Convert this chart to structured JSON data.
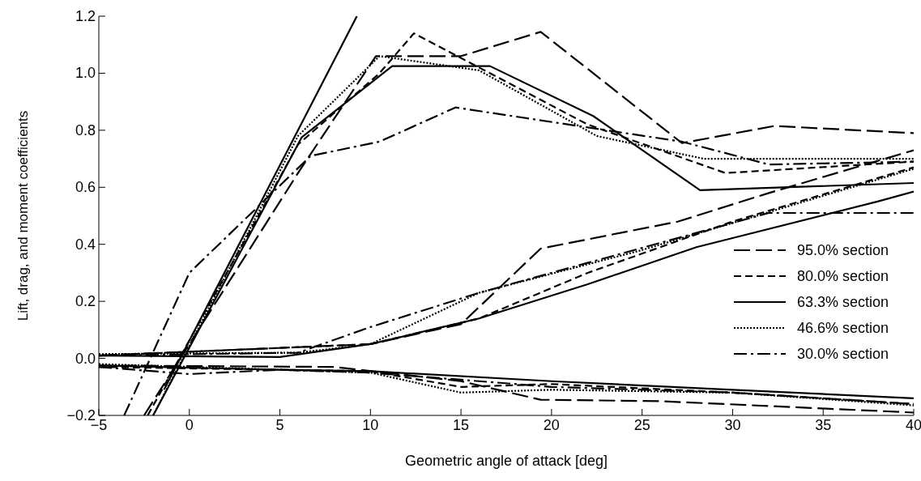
{
  "chart_data": {
    "type": "line",
    "xlabel": "Geometric angle of attack  [deg]",
    "ylabel": "Lift, drag, and moment coefficients",
    "xlim": [
      -5,
      40
    ],
    "xticks": [
      {
        "value": -5,
        "label": "−5"
      },
      0,
      5,
      10,
      15,
      20,
      25,
      30,
      35,
      40
    ],
    "ylim": [
      -0.2,
      1.2
    ],
    "yticks": [
      {
        "value": -0.2,
        "label": "−0.2"
      },
      {
        "value": 0,
        "label": "0.0"
      },
      0.2,
      0.4,
      0.6,
      0.8,
      {
        "value": 1,
        "label": "1.0"
      },
      1.2
    ],
    "legend": "right",
    "marker": "none",
    "series": [
      {
        "name": "95.0%  section",
        "color": "#000000",
        "line_style": "longdash",
        "x": [
          -2.5,
          6,
          10.3,
          15,
          19.4,
          27.2,
          32.3,
          40
        ],
        "values": [
          -0.2,
          0.65,
          1.06,
          1.06,
          1.145,
          0.755,
          0.815,
          0.79
        ]
      },
      {
        "name": "80.0%  section",
        "color": "#000000",
        "line_style": "dashed",
        "x": [
          -2.3,
          6,
          10.5,
          12.4,
          16,
          22,
          29.6,
          40
        ],
        "values": [
          -0.2,
          0.75,
          1.0,
          1.14,
          1.02,
          0.82,
          0.65,
          0.69
        ]
      },
      {
        "name": "63.3%  section",
        "color": "#000000",
        "line_style": "solid",
        "x": [
          -2,
          6.2,
          11.2,
          16.6,
          22.3,
          28.2,
          40
        ],
        "values": [
          -0.2,
          0.775,
          1.025,
          1.025,
          0.85,
          0.59,
          0.615
        ]
      },
      {
        "name": "46.6%  section",
        "color": "#000000",
        "line_style": "dotted",
        "x": [
          -2,
          6,
          10.5,
          16,
          22.5,
          28.4,
          40
        ],
        "values": [
          -0.2,
          0.78,
          1.06,
          1.01,
          0.78,
          0.7,
          0.7
        ]
      },
      {
        "name": "30.0%  section",
        "color": "#000000",
        "line_style": "dashdot",
        "x": [
          -3.6,
          0,
          6.7,
          10.5,
          14.7,
          27.2,
          32,
          40
        ],
        "values": [
          -0.2,
          0.3,
          0.71,
          0.76,
          0.88,
          0.76,
          0.68,
          0.69
        ]
      },
      {
        "color": "#000000",
        "line_style": "longdash",
        "x": [
          -5,
          10,
          15,
          19.4,
          27,
          32,
          40
        ],
        "values": [
          0.01,
          0.05,
          0.12,
          0.385,
          0.48,
          0.58,
          0.73
        ]
      },
      {
        "color": "#000000",
        "line_style": "dashed",
        "x": [
          -5,
          10,
          16,
          22,
          30,
          40
        ],
        "values": [
          0.01,
          0.05,
          0.14,
          0.3,
          0.48,
          0.67
        ]
      },
      {
        "color": "#000000",
        "line_style": "solid",
        "x": [
          -5,
          5,
          10,
          16,
          22,
          28,
          38,
          40
        ],
        "values": [
          0.01,
          0.005,
          0.05,
          0.14,
          0.26,
          0.39,
          0.55,
          0.585
        ]
      },
      {
        "color": "#000000",
        "line_style": "dotted",
        "x": [
          -5,
          6,
          10,
          16,
          25,
          40
        ],
        "values": [
          0.015,
          0.02,
          0.05,
          0.23,
          0.38,
          0.665
        ]
      },
      {
        "color": "#000000",
        "line_style": "dashdot",
        "x": [
          -5,
          6,
          10,
          16,
          32,
          40
        ],
        "values": [
          0.01,
          0.02,
          0.11,
          0.23,
          0.51,
          0.51
        ]
      },
      {
        "color": "#000000",
        "line_style": "longdash",
        "x": [
          -5,
          8,
          15,
          19.4,
          26,
          40
        ],
        "values": [
          -0.025,
          -0.03,
          -0.08,
          -0.145,
          -0.15,
          -0.19
        ]
      },
      {
        "color": "#000000",
        "line_style": "dashed",
        "x": [
          -5,
          10,
          15,
          20,
          30,
          40
        ],
        "values": [
          -0.03,
          -0.045,
          -0.1,
          -0.09,
          -0.12,
          -0.16
        ]
      },
      {
        "color": "#000000",
        "line_style": "solid",
        "x": [
          -5,
          5,
          10,
          20,
          30,
          40
        ],
        "values": [
          -0.025,
          -0.04,
          -0.045,
          -0.08,
          -0.11,
          -0.14
        ]
      },
      {
        "color": "#000000",
        "line_style": "dotted",
        "x": [
          -5,
          10,
          15,
          20,
          30,
          40
        ],
        "values": [
          -0.02,
          -0.05,
          -0.12,
          -0.11,
          -0.12,
          -0.165
        ]
      },
      {
        "color": "#000000",
        "line_style": "dashdot",
        "x": [
          -5,
          0,
          5,
          10,
          20,
          30,
          40
        ],
        "values": [
          -0.03,
          -0.055,
          -0.04,
          -0.05,
          -0.1,
          -0.12,
          -0.16
        ]
      },
      {
        "color": "#000000",
        "line_style": "solid",
        "x": [
          -1.4,
          9.25
        ],
        "values": [
          -0.11,
          1.2
        ]
      }
    ]
  }
}
